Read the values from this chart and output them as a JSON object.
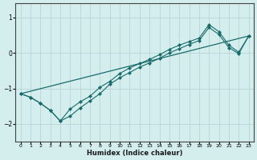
{
  "xlabel": "Humidex (Indice chaleur)",
  "background_color": "#d4eded",
  "grid_color": "#b8d4d4",
  "line_color": "#1a6b6b",
  "xlim": [
    -0.5,
    23.5
  ],
  "ylim": [
    -2.5,
    1.4
  ],
  "xticks": [
    0,
    1,
    2,
    3,
    4,
    5,
    6,
    7,
    8,
    9,
    10,
    11,
    12,
    13,
    14,
    15,
    16,
    17,
    18,
    19,
    20,
    21,
    22,
    23
  ],
  "yticks": [
    -2,
    -1,
    0,
    1
  ],
  "series1_x": [
    0,
    1,
    2,
    3,
    4,
    5,
    6,
    7,
    8,
    9,
    10,
    11,
    12,
    13,
    14,
    15,
    16,
    17,
    18,
    19,
    20,
    21,
    22,
    23
  ],
  "series1_y": [
    -1.15,
    -1.25,
    -1.42,
    -1.62,
    -1.92,
    -1.58,
    -1.38,
    -1.22,
    -0.97,
    -0.8,
    -0.58,
    -0.42,
    -0.3,
    -0.18,
    -0.05,
    0.1,
    0.22,
    0.32,
    0.42,
    0.8,
    0.6,
    0.22,
    0.02,
    0.48
  ],
  "series2_x": [
    0,
    1,
    2,
    3,
    4,
    5,
    6,
    7,
    8,
    9,
    10,
    11,
    12,
    13,
    14,
    15,
    16,
    17,
    18,
    19,
    20,
    21,
    22,
    23
  ],
  "series2_y": [
    -1.15,
    -1.25,
    -1.42,
    -1.62,
    -1.92,
    -1.78,
    -1.55,
    -1.35,
    -1.15,
    -0.88,
    -0.7,
    -0.55,
    -0.4,
    -0.28,
    -0.15,
    0.0,
    0.12,
    0.24,
    0.35,
    0.72,
    0.52,
    0.15,
    -0.02,
    0.48
  ],
  "series3_x": [
    0,
    23
  ],
  "series3_y": [
    -1.15,
    0.48
  ]
}
